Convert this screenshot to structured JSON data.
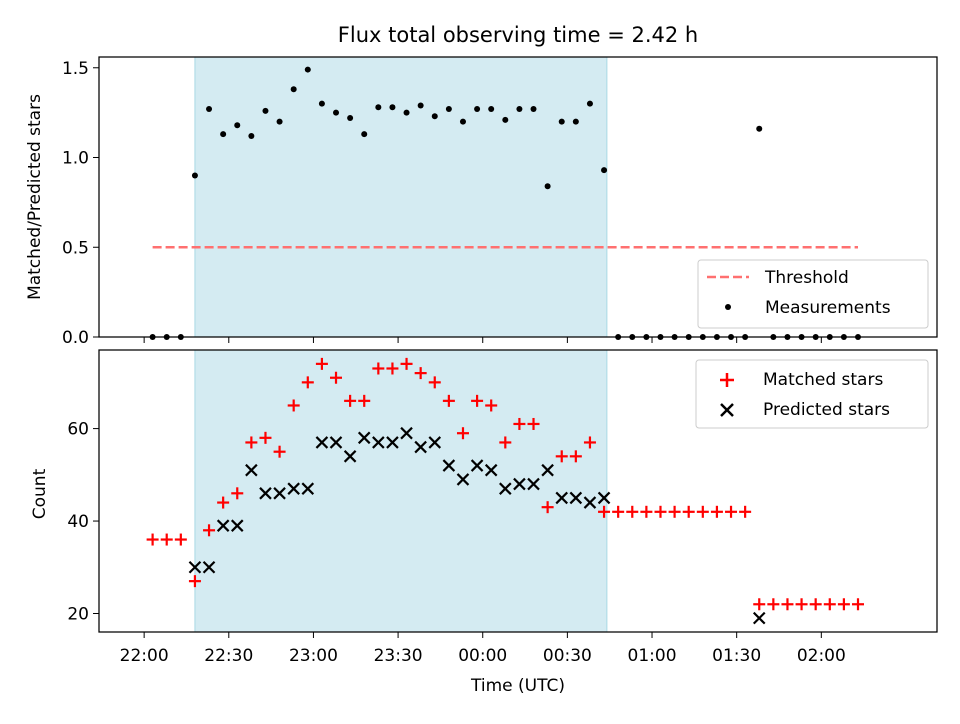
{
  "chart_data": [
    {
      "type": "scatter",
      "title": "Flux total observing time = 2.42 h",
      "ylabel": "Matched/Predicted stars",
      "xlim_minutes_after_22": [
        -16,
        281
      ],
      "x_ticks": [
        "22:00",
        "22:30",
        "23:00",
        "23:30",
        "00:00",
        "00:30",
        "01:00",
        "01:30",
        "02:00"
      ],
      "ylim": [
        0,
        1.56
      ],
      "yticks": [
        "0.0",
        "0.5",
        "1.0",
        "1.5"
      ],
      "observing_window": {
        "start": "22:18",
        "end": "00:44",
        "color": "#d4ebf2"
      },
      "threshold": {
        "name": "Threshold",
        "value": 0.5,
        "x_start": "22:03",
        "x_end": "02:13",
        "color": "#ff7070"
      },
      "legend": {
        "position": "lower-right",
        "entries": [
          "Threshold",
          "Measurements"
        ]
      },
      "series": [
        {
          "name": "Measurements",
          "marker": "dot",
          "color": "#000000",
          "x": [
            "22:03",
            "22:08",
            "22:13",
            "22:18",
            "22:23",
            "22:28",
            "22:33",
            "22:38",
            "22:43",
            "22:48",
            "22:53",
            "22:58",
            "23:03",
            "23:08",
            "23:13",
            "23:18",
            "23:23",
            "23:28",
            "23:33",
            "23:38",
            "23:43",
            "23:48",
            "23:53",
            "23:58",
            "00:03",
            "00:08",
            "00:13",
            "00:18",
            "00:23",
            "00:28",
            "00:33",
            "00:38",
            "00:43",
            "00:48",
            "00:53",
            "00:58",
            "01:03",
            "01:08",
            "01:13",
            "01:18",
            "01:23",
            "01:28",
            "01:33",
            "01:38",
            "01:43",
            "01:48",
            "01:53",
            "01:58",
            "02:03",
            "02:08",
            "02:13"
          ],
          "y": [
            0,
            0,
            0,
            0.9,
            1.27,
            1.13,
            1.18,
            1.12,
            1.26,
            1.2,
            1.38,
            1.49,
            1.3,
            1.25,
            1.22,
            1.13,
            1.28,
            1.28,
            1.25,
            1.29,
            1.23,
            1.27,
            1.2,
            1.27,
            1.27,
            1.21,
            1.27,
            1.27,
            0.84,
            1.2,
            1.2,
            1.3,
            0.93,
            0,
            0,
            0,
            0,
            0,
            0,
            0,
            0,
            0,
            0,
            1.16,
            0,
            0,
            0,
            0,
            0,
            0,
            0
          ]
        }
      ]
    },
    {
      "type": "scatter",
      "xlabel": "Time (UTC)",
      "ylabel": "Count",
      "xlim_minutes_after_22": [
        -16,
        281
      ],
      "x_ticks": [
        "22:00",
        "22:30",
        "23:00",
        "23:30",
        "00:00",
        "00:30",
        "01:00",
        "01:30",
        "02:00"
      ],
      "ylim": [
        16,
        77
      ],
      "yticks": [
        "20",
        "40",
        "60"
      ],
      "observing_window": {
        "start": "22:18",
        "end": "00:44",
        "color": "#d4ebf2"
      },
      "legend": {
        "position": "upper-right",
        "entries": [
          "Matched stars",
          "Predicted stars"
        ]
      },
      "series": [
        {
          "name": "Matched stars",
          "marker": "plus",
          "color": "#ff0000",
          "x": [
            "22:03",
            "22:08",
            "22:13",
            "22:18",
            "22:23",
            "22:28",
            "22:33",
            "22:38",
            "22:43",
            "22:48",
            "22:53",
            "22:58",
            "23:03",
            "23:08",
            "23:13",
            "23:18",
            "23:23",
            "23:28",
            "23:33",
            "23:38",
            "23:43",
            "23:48",
            "23:53",
            "23:58",
            "00:03",
            "00:08",
            "00:13",
            "00:18",
            "00:23",
            "00:28",
            "00:33",
            "00:38",
            "00:43",
            "00:48",
            "00:53",
            "00:58",
            "01:03",
            "01:08",
            "01:13",
            "01:18",
            "01:23",
            "01:28",
            "01:33",
            "01:38",
            "01:43",
            "01:48",
            "01:53",
            "01:58",
            "02:03",
            "02:08",
            "02:13"
          ],
          "y": [
            36,
            36,
            36,
            27,
            38,
            44,
            46,
            57,
            58,
            55,
            65,
            70,
            74,
            71,
            66,
            66,
            73,
            73,
            74,
            72,
            70,
            66,
            59,
            66,
            65,
            57,
            61,
            61,
            43,
            54,
            54,
            57,
            42,
            42,
            42,
            42,
            42,
            42,
            42,
            42,
            42,
            42,
            42,
            22,
            22,
            22,
            22,
            22,
            22,
            22,
            22
          ]
        },
        {
          "name": "Predicted stars",
          "marker": "x",
          "color": "#000000",
          "x": [
            "22:18",
            "22:23",
            "22:28",
            "22:33",
            "22:38",
            "22:43",
            "22:48",
            "22:53",
            "22:58",
            "23:03",
            "23:08",
            "23:13",
            "23:18",
            "23:23",
            "23:28",
            "23:33",
            "23:38",
            "23:43",
            "23:48",
            "23:53",
            "23:58",
            "00:03",
            "00:08",
            "00:13",
            "00:18",
            "00:23",
            "00:28",
            "00:33",
            "00:38",
            "00:43",
            "01:38"
          ],
          "y": [
            30,
            30,
            39,
            39,
            51,
            46,
            46,
            47,
            47,
            57,
            57,
            54,
            58,
            57,
            57,
            59,
            56,
            57,
            52,
            49,
            52,
            51,
            47,
            48,
            48,
            51,
            45,
            45,
            44,
            45,
            19
          ]
        }
      ]
    }
  ]
}
